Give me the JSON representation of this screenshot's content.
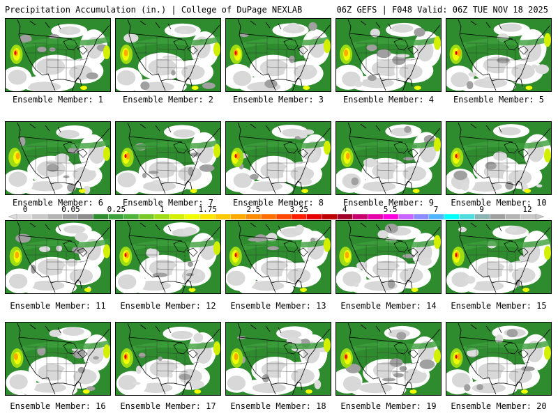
{
  "header": {
    "title": "Precipitation Accumulation (in.) | College of DuPage NEXLAB",
    "run_info": "06Z GEFS | F048 Valid: 06Z TUE NOV 18 2025"
  },
  "members": [
    {
      "label": "Ensemble Member: 1"
    },
    {
      "label": "Ensemble Member: 2"
    },
    {
      "label": "Ensemble Member: 3"
    },
    {
      "label": "Ensemble Member: 4"
    },
    {
      "label": "Ensemble Member: 5"
    },
    {
      "label": "Ensemble Member: 6"
    },
    {
      "label": "Ensemble Member: 7"
    },
    {
      "label": "Ensemble Member: 8"
    },
    {
      "label": "Ensemble Member: 9"
    },
    {
      "label": "Ensemble Member: 10"
    },
    {
      "label": "Ensemble Member: 11"
    },
    {
      "label": "Ensemble Member: 12"
    },
    {
      "label": "Ensemble Member: 13"
    },
    {
      "label": "Ensemble Member: 14"
    },
    {
      "label": "Ensemble Member: 15"
    },
    {
      "label": "Ensemble Member: 16"
    },
    {
      "label": "Ensemble Member: 17"
    },
    {
      "label": "Ensemble Member: 18"
    },
    {
      "label": "Ensemble Member: 19"
    },
    {
      "label": "Ensemble Member: 20"
    }
  ],
  "colorbar": {
    "tick_labels": [
      "0",
      "0.05",
      "0.25",
      "1",
      "1.75",
      "2.5",
      "3.25",
      "4",
      "5.5",
      "7",
      "9",
      "12"
    ],
    "colors": [
      "#dcdcdc",
      "#c8c8c8",
      "#b4b4b4",
      "#a0a0a0",
      "#8c8c8c",
      "#2e8b2e",
      "#3ca03c",
      "#50b43c",
      "#78c828",
      "#a0dc14",
      "#d2f000",
      "#f0ff00",
      "#ffe600",
      "#ffc800",
      "#ffaa00",
      "#ff8c00",
      "#ff6e00",
      "#ff4600",
      "#ff1e00",
      "#e60000",
      "#be0000",
      "#a00028",
      "#c8006e",
      "#e600aa",
      "#ff00dc",
      "#c864ff",
      "#8c8cff",
      "#50b4ff",
      "#00ffff",
      "#50dcdc",
      "#8cb4b4",
      "#a0a0a0",
      "#b4b4b4",
      "#c8c8c8"
    ]
  }
}
